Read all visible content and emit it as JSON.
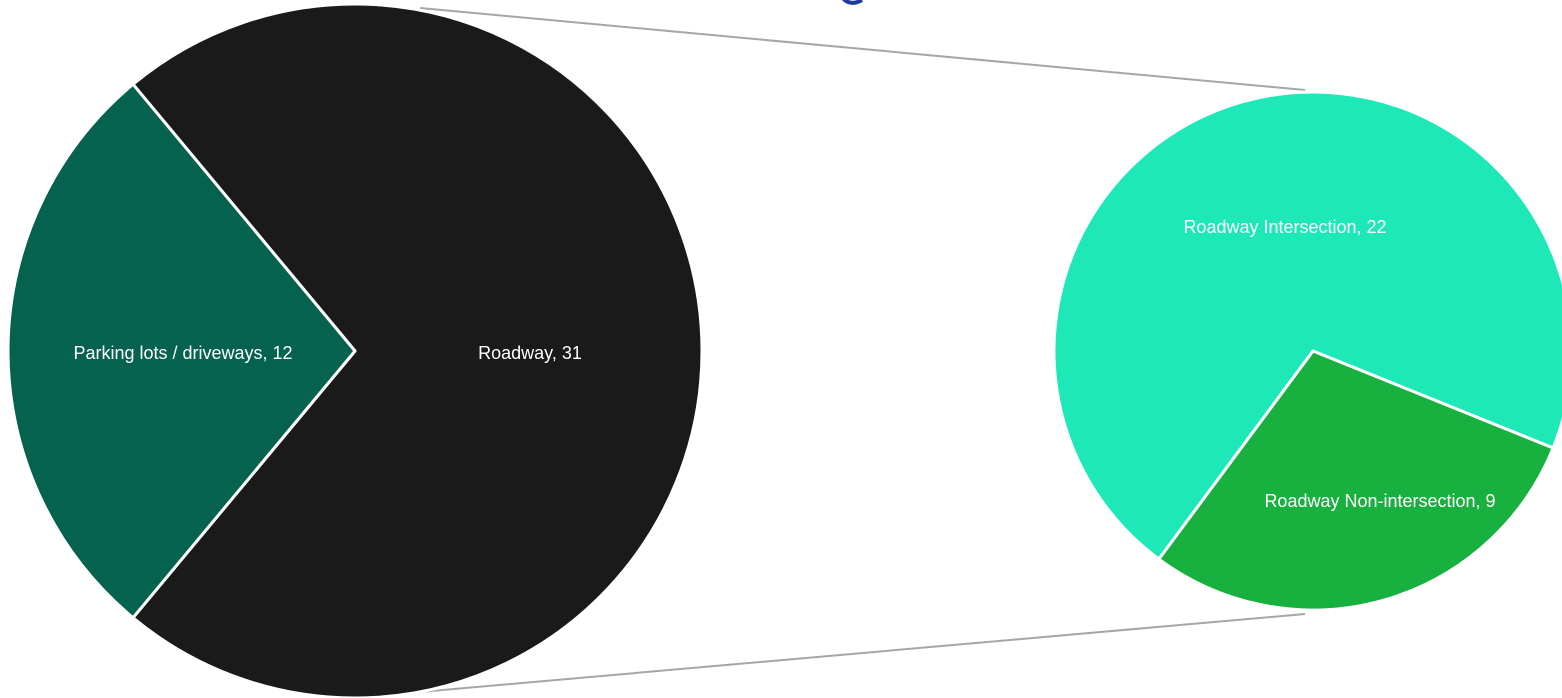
{
  "chart_data": {
    "type": "pie",
    "main_pie": {
      "slices": [
        {
          "label": "Roadway",
          "value": 31,
          "color": "#1a1a1a",
          "display": "Roadway, 31"
        },
        {
          "label": "Parking lots / driveways",
          "value": 12,
          "color": "#05624e",
          "display": "Parking lots / driveways, 12"
        }
      ]
    },
    "detail_pie": {
      "breakdown_of": "Roadway",
      "slices": [
        {
          "label": "Roadway Intersection",
          "value": 22,
          "color": "#1ee8b7",
          "display": "Roadway Intersection, 22"
        },
        {
          "label": "Roadway Non-intersection",
          "value": 9,
          "color": "#18b03e",
          "display": "Roadway Non-intersection, 9"
        }
      ]
    },
    "connector_color": "#a6a6a6",
    "title_fragment_color": "#1f3c9a",
    "legend": "none"
  }
}
